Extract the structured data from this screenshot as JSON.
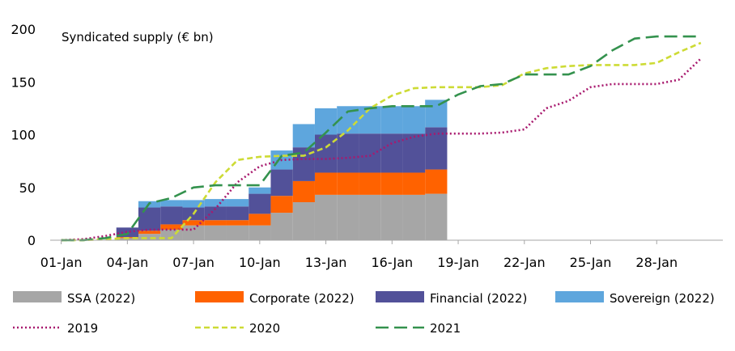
{
  "chart_data": {
    "type": "area",
    "annotation": "Syndicated supply (€ bn)",
    "x_tick_labels": [
      "01-Jan",
      "04-Jan",
      "07-Jan",
      "10-Jan",
      "13-Jan",
      "16-Jan",
      "19-Jan",
      "22-Jan",
      "25-Jan",
      "28-Jan"
    ],
    "x_tick_days": [
      1,
      4,
      7,
      10,
      13,
      16,
      19,
      22,
      25,
      28
    ],
    "xlim": [
      0.5,
      31
    ],
    "ylim": [
      0,
      200
    ],
    "y_ticks": [
      0,
      50,
      100,
      150,
      200
    ],
    "y_tick_labels": [
      "0",
      "50",
      "100",
      "150",
      "200"
    ],
    "grid": false,
    "legend_position": "bottom",
    "stacked_areas": {
      "x": [
        1,
        2,
        3,
        4,
        5,
        6,
        7,
        8,
        9,
        10,
        11,
        12,
        13,
        14,
        15,
        16,
        17,
        18
      ],
      "series": [
        {
          "name": "SSA (2022)",
          "color": "#a6a6a6",
          "values": [
            0,
            0,
            0,
            2,
            6,
            10,
            14,
            14,
            14,
            14,
            26,
            36,
            43,
            43,
            43,
            43,
            43,
            44
          ]
        },
        {
          "name": "Corporate (2022)",
          "color": "#ff6200",
          "values": [
            0,
            0,
            0,
            1,
            3,
            5,
            5,
            5,
            5,
            11,
            16,
            20,
            21,
            21,
            21,
            21,
            21,
            23
          ]
        },
        {
          "name": "Financial (2022)",
          "color": "#525199",
          "values": [
            0,
            0,
            0,
            9,
            22,
            17,
            12,
            13,
            13,
            19,
            25,
            32,
            36,
            37,
            37,
            37,
            37,
            40
          ]
        },
        {
          "name": "Sovereign (2022)",
          "color": "#5ea6dd",
          "values": [
            0,
            0,
            0,
            0,
            6,
            6,
            7,
            7,
            7,
            6,
            18,
            22,
            25,
            26,
            26,
            26,
            26,
            26
          ]
        }
      ]
    },
    "lines": [
      {
        "name": "2019",
        "color": "#a8196e",
        "dash": "dot",
        "x": [
          1,
          2,
          3,
          4,
          5,
          6,
          7,
          8,
          9,
          10,
          11,
          12,
          13,
          14,
          15,
          16,
          17,
          18,
          19,
          20,
          21,
          22,
          23,
          24,
          25,
          26,
          27,
          28,
          29,
          30
        ],
        "y": [
          0,
          1,
          4,
          8,
          10,
          10,
          10,
          30,
          55,
          70,
          76,
          77,
          77,
          78,
          80,
          92,
          98,
          101,
          101,
          101,
          102,
          105,
          125,
          132,
          145,
          148,
          148,
          148,
          152,
          172
        ]
      },
      {
        "name": "2020",
        "color": "#cddb35",
        "dash": "short",
        "x": [
          1,
          2,
          3,
          4,
          5,
          6,
          7,
          8,
          9,
          10,
          11,
          12,
          13,
          14,
          15,
          16,
          17,
          18,
          19,
          20,
          21,
          22,
          23,
          24,
          25,
          26,
          27,
          28,
          29,
          30
        ],
        "y": [
          0,
          0,
          1,
          2,
          2,
          2,
          25,
          55,
          76,
          79,
          80,
          80,
          88,
          104,
          125,
          137,
          144,
          145,
          145,
          145,
          147,
          158,
          163,
          165,
          166,
          166,
          166,
          168,
          178,
          187
        ]
      },
      {
        "name": "2021",
        "color": "#34924e",
        "dash": "long",
        "x": [
          1,
          2,
          3,
          4,
          5,
          6,
          7,
          8,
          9,
          10,
          11,
          12,
          13,
          14,
          15,
          16,
          17,
          18,
          19,
          20,
          21,
          22,
          23,
          24,
          25,
          26,
          27,
          28,
          29,
          30
        ],
        "y": [
          0,
          0,
          2,
          6,
          35,
          40,
          50,
          52,
          52,
          52,
          80,
          83,
          102,
          122,
          125,
          127,
          127,
          127,
          138,
          146,
          148,
          157,
          157,
          157,
          165,
          180,
          191,
          193,
          193,
          193
        ]
      }
    ]
  }
}
